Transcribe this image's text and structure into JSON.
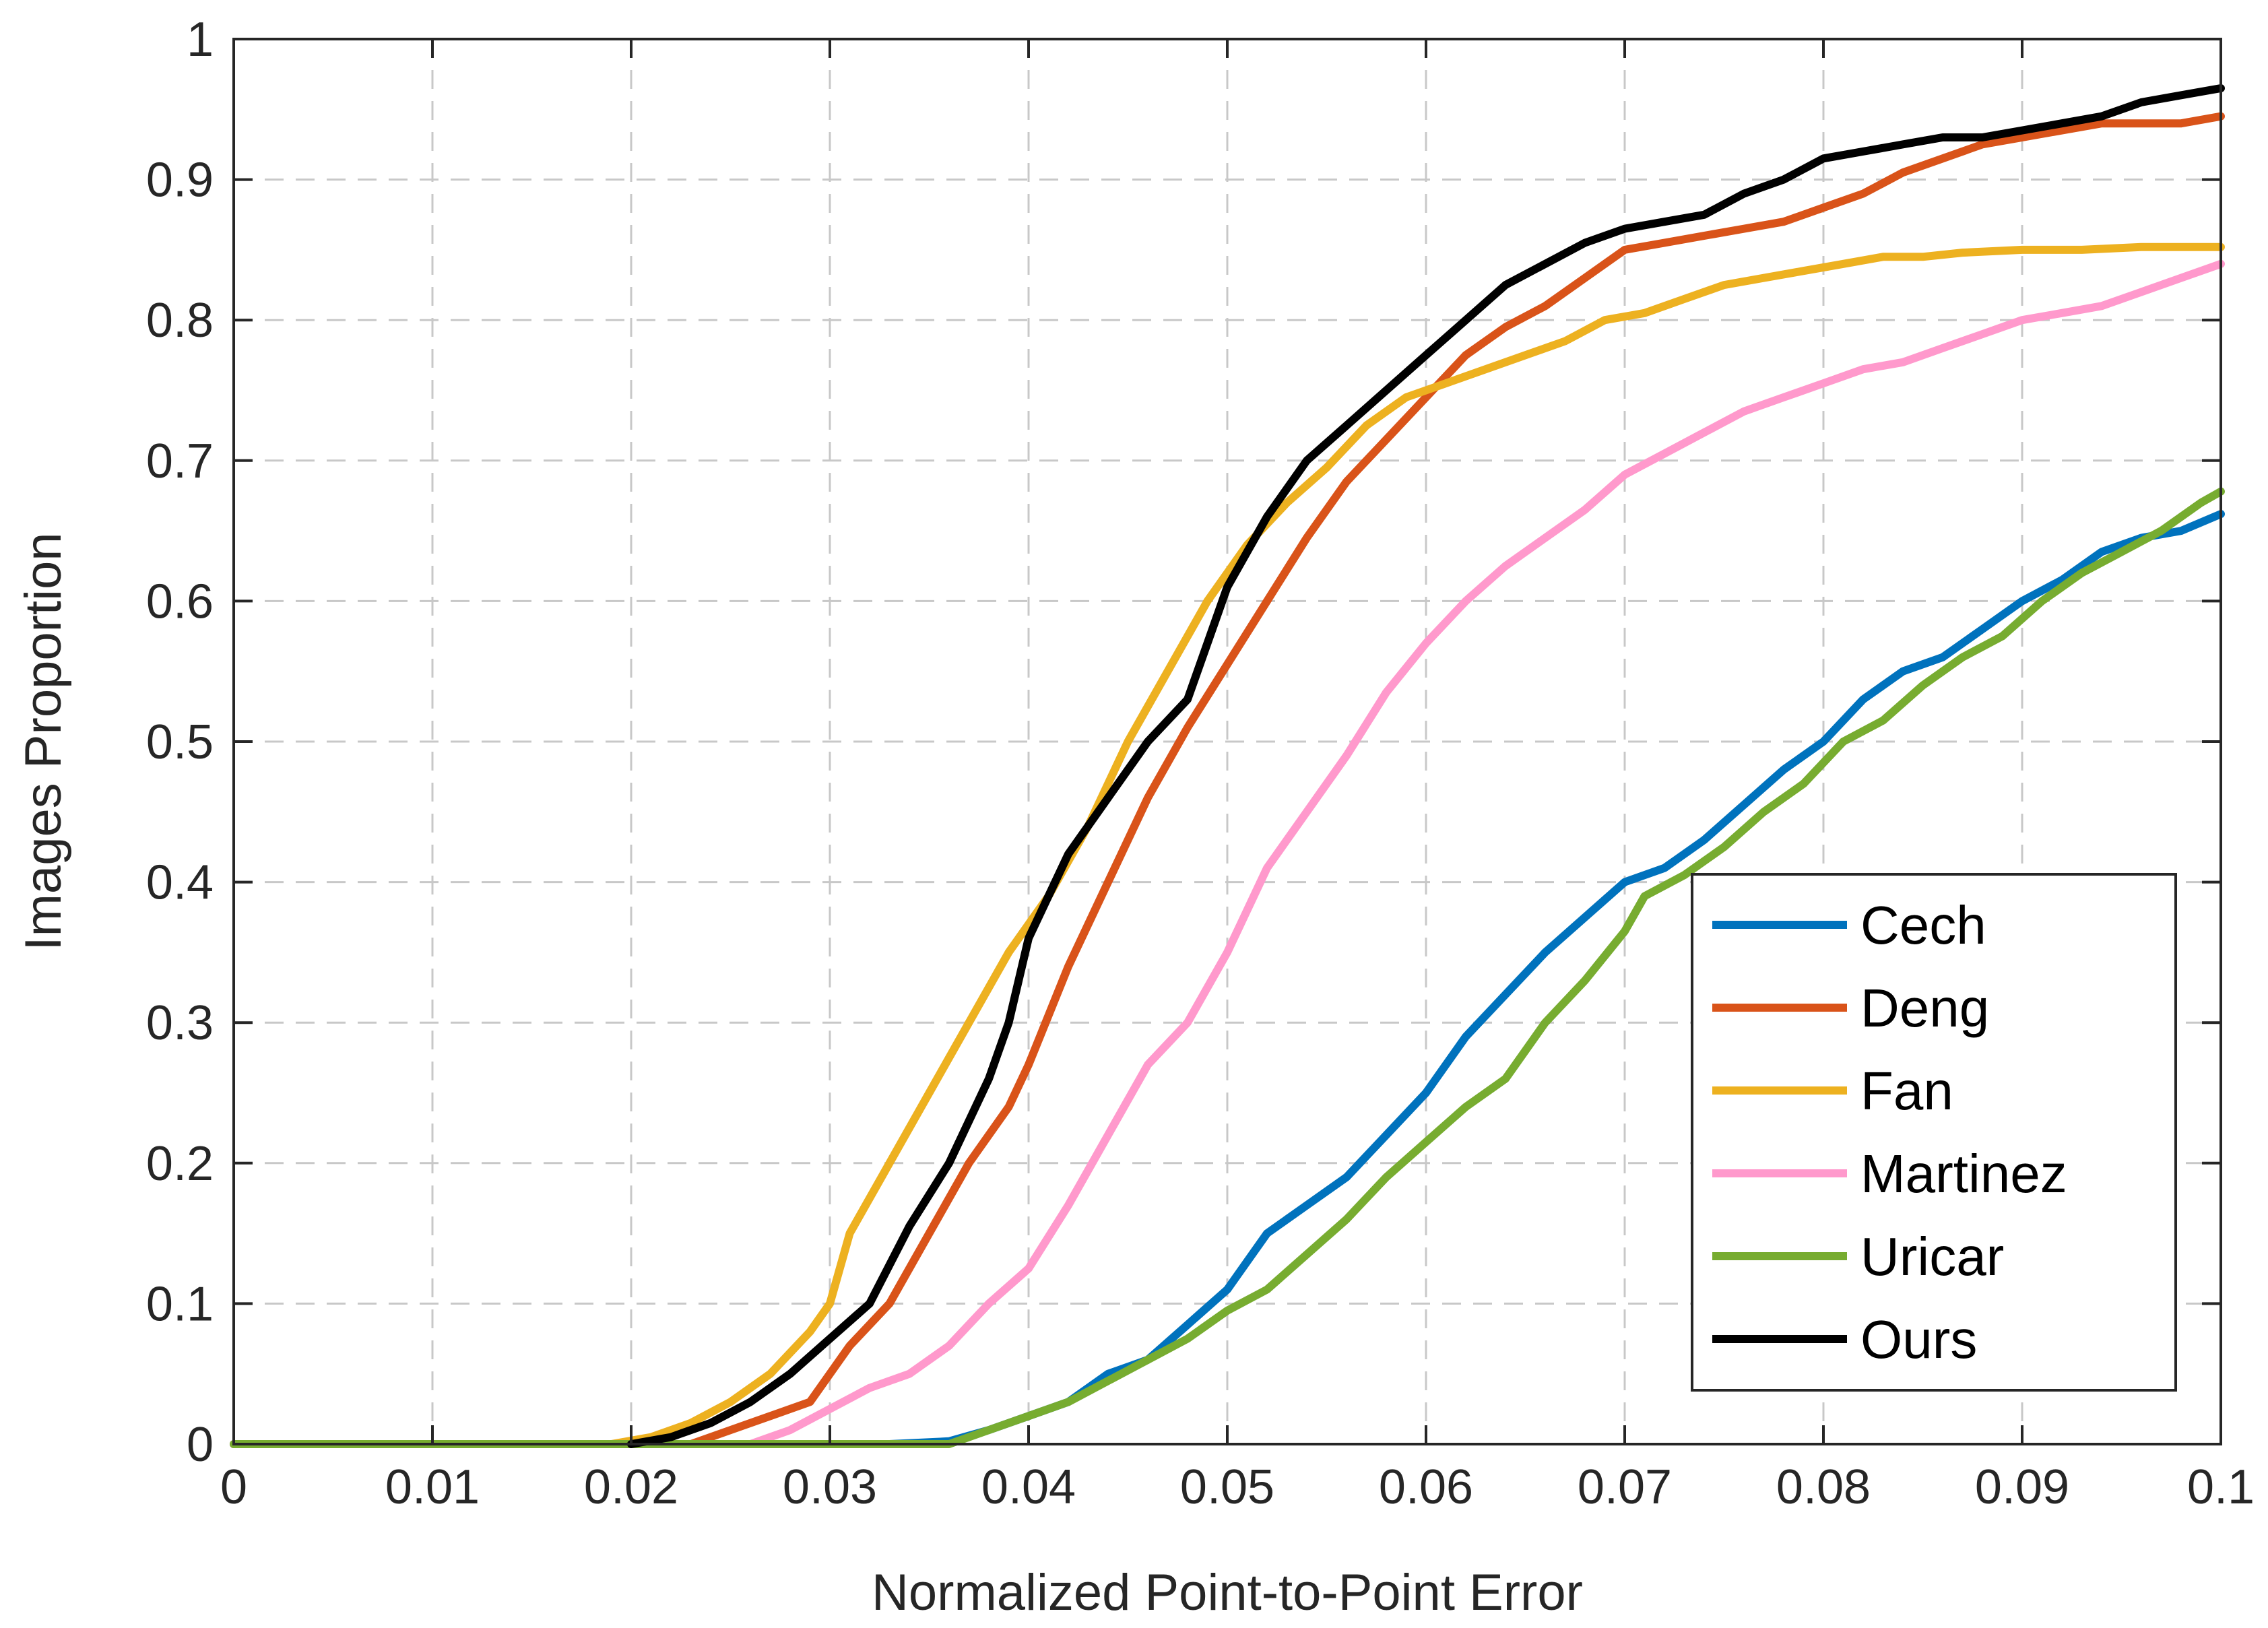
{
  "chart_data": {
    "type": "line",
    "title": "",
    "xlabel": "Normalized Point-to-Point Error",
    "ylabel": "Images Proportion",
    "xlim": [
      0,
      0.1
    ],
    "ylim": [
      0,
      1
    ],
    "xticks": [
      0,
      0.01,
      0.02,
      0.03,
      0.04,
      0.05,
      0.06,
      0.07,
      0.08,
      0.09,
      0.1
    ],
    "yticks": [
      0,
      0.1,
      0.2,
      0.3,
      0.4,
      0.5,
      0.6,
      0.7,
      0.8,
      0.9,
      1
    ],
    "xtick_labels": [
      "0",
      "0.01",
      "0.02",
      "0.03",
      "0.04",
      "0.05",
      "0.06",
      "0.07",
      "0.08",
      "0.09",
      "0.1"
    ],
    "ytick_labels": [
      "0",
      "0.1",
      "0.2",
      "0.3",
      "0.4",
      "0.5",
      "0.6",
      "0.7",
      "0.8",
      "0.9",
      "1"
    ],
    "grid": true,
    "legend_position": "bottom-right",
    "series": [
      {
        "name": "Cech",
        "color": "#0072BD",
        "points": [
          [
            0,
            0
          ],
          [
            0.033,
            0
          ],
          [
            0.036,
            0.002
          ],
          [
            0.038,
            0.01
          ],
          [
            0.04,
            0.02
          ],
          [
            0.042,
            0.03
          ],
          [
            0.044,
            0.05
          ],
          [
            0.046,
            0.06
          ],
          [
            0.048,
            0.085
          ],
          [
            0.05,
            0.11
          ],
          [
            0.052,
            0.15
          ],
          [
            0.054,
            0.17
          ],
          [
            0.056,
            0.19
          ],
          [
            0.058,
            0.22
          ],
          [
            0.06,
            0.25
          ],
          [
            0.062,
            0.29
          ],
          [
            0.064,
            0.32
          ],
          [
            0.066,
            0.35
          ],
          [
            0.068,
            0.375
          ],
          [
            0.07,
            0.4
          ],
          [
            0.072,
            0.41
          ],
          [
            0.074,
            0.43
          ],
          [
            0.076,
            0.455
          ],
          [
            0.078,
            0.48
          ],
          [
            0.08,
            0.5
          ],
          [
            0.082,
            0.53
          ],
          [
            0.084,
            0.55
          ],
          [
            0.086,
            0.56
          ],
          [
            0.088,
            0.58
          ],
          [
            0.09,
            0.6
          ],
          [
            0.092,
            0.615
          ],
          [
            0.094,
            0.635
          ],
          [
            0.096,
            0.645
          ],
          [
            0.098,
            0.65
          ],
          [
            0.1,
            0.662
          ]
        ]
      },
      {
        "name": "Deng",
        "color": "#D95319",
        "points": [
          [
            0,
            0
          ],
          [
            0.023,
            0
          ],
          [
            0.025,
            0.01
          ],
          [
            0.027,
            0.02
          ],
          [
            0.029,
            0.03
          ],
          [
            0.031,
            0.07
          ],
          [
            0.033,
            0.1
          ],
          [
            0.035,
            0.15
          ],
          [
            0.037,
            0.2
          ],
          [
            0.039,
            0.24
          ],
          [
            0.04,
            0.27
          ],
          [
            0.042,
            0.34
          ],
          [
            0.044,
            0.4
          ],
          [
            0.046,
            0.46
          ],
          [
            0.048,
            0.51
          ],
          [
            0.05,
            0.555
          ],
          [
            0.052,
            0.6
          ],
          [
            0.054,
            0.645
          ],
          [
            0.056,
            0.685
          ],
          [
            0.058,
            0.715
          ],
          [
            0.06,
            0.745
          ],
          [
            0.062,
            0.775
          ],
          [
            0.064,
            0.795
          ],
          [
            0.066,
            0.81
          ],
          [
            0.068,
            0.83
          ],
          [
            0.07,
            0.85
          ],
          [
            0.072,
            0.855
          ],
          [
            0.074,
            0.86
          ],
          [
            0.076,
            0.865
          ],
          [
            0.078,
            0.87
          ],
          [
            0.08,
            0.88
          ],
          [
            0.082,
            0.89
          ],
          [
            0.084,
            0.905
          ],
          [
            0.086,
            0.915
          ],
          [
            0.088,
            0.925
          ],
          [
            0.09,
            0.93
          ],
          [
            0.092,
            0.935
          ],
          [
            0.094,
            0.94
          ],
          [
            0.096,
            0.94
          ],
          [
            0.098,
            0.94
          ],
          [
            0.1,
            0.945
          ]
        ]
      },
      {
        "name": "Fan",
        "color": "#EDB120",
        "points": [
          [
            0,
            0
          ],
          [
            0.019,
            0
          ],
          [
            0.021,
            0.005
          ],
          [
            0.023,
            0.015
          ],
          [
            0.025,
            0.03
          ],
          [
            0.027,
            0.05
          ],
          [
            0.029,
            0.08
          ],
          [
            0.03,
            0.1
          ],
          [
            0.031,
            0.15
          ],
          [
            0.033,
            0.2
          ],
          [
            0.035,
            0.25
          ],
          [
            0.037,
            0.3
          ],
          [
            0.039,
            0.35
          ],
          [
            0.041,
            0.39
          ],
          [
            0.043,
            0.44
          ],
          [
            0.045,
            0.5
          ],
          [
            0.047,
            0.55
          ],
          [
            0.049,
            0.6
          ],
          [
            0.051,
            0.64
          ],
          [
            0.053,
            0.67
          ],
          [
            0.055,
            0.695
          ],
          [
            0.057,
            0.725
          ],
          [
            0.059,
            0.745
          ],
          [
            0.061,
            0.755
          ],
          [
            0.063,
            0.765
          ],
          [
            0.065,
            0.775
          ],
          [
            0.067,
            0.785
          ],
          [
            0.069,
            0.8
          ],
          [
            0.071,
            0.805
          ],
          [
            0.073,
            0.815
          ],
          [
            0.075,
            0.825
          ],
          [
            0.077,
            0.83
          ],
          [
            0.079,
            0.835
          ],
          [
            0.081,
            0.84
          ],
          [
            0.083,
            0.845
          ],
          [
            0.085,
            0.845
          ],
          [
            0.087,
            0.848
          ],
          [
            0.09,
            0.85
          ],
          [
            0.093,
            0.85
          ],
          [
            0.096,
            0.852
          ],
          [
            0.1,
            0.852
          ]
        ]
      },
      {
        "name": "Martinez",
        "color": "#FF99CC",
        "points": [
          [
            0,
            0
          ],
          [
            0.026,
            0
          ],
          [
            0.028,
            0.01
          ],
          [
            0.03,
            0.025
          ],
          [
            0.032,
            0.04
          ],
          [
            0.034,
            0.05
          ],
          [
            0.036,
            0.07
          ],
          [
            0.038,
            0.1
          ],
          [
            0.04,
            0.125
          ],
          [
            0.042,
            0.17
          ],
          [
            0.044,
            0.22
          ],
          [
            0.046,
            0.27
          ],
          [
            0.048,
            0.3
          ],
          [
            0.05,
            0.35
          ],
          [
            0.052,
            0.41
          ],
          [
            0.054,
            0.45
          ],
          [
            0.056,
            0.49
          ],
          [
            0.058,
            0.535
          ],
          [
            0.06,
            0.57
          ],
          [
            0.062,
            0.6
          ],
          [
            0.064,
            0.625
          ],
          [
            0.066,
            0.645
          ],
          [
            0.068,
            0.665
          ],
          [
            0.07,
            0.69
          ],
          [
            0.072,
            0.705
          ],
          [
            0.074,
            0.72
          ],
          [
            0.076,
            0.735
          ],
          [
            0.078,
            0.745
          ],
          [
            0.08,
            0.755
          ],
          [
            0.082,
            0.765
          ],
          [
            0.084,
            0.77
          ],
          [
            0.086,
            0.78
          ],
          [
            0.088,
            0.79
          ],
          [
            0.09,
            0.8
          ],
          [
            0.092,
            0.805
          ],
          [
            0.094,
            0.81
          ],
          [
            0.096,
            0.82
          ],
          [
            0.098,
            0.83
          ],
          [
            0.1,
            0.84
          ]
        ]
      },
      {
        "name": "Uricar",
        "color": "#77AC30",
        "points": [
          [
            0,
            0
          ],
          [
            0.036,
            0
          ],
          [
            0.038,
            0.01
          ],
          [
            0.04,
            0.02
          ],
          [
            0.042,
            0.03
          ],
          [
            0.044,
            0.045
          ],
          [
            0.046,
            0.06
          ],
          [
            0.048,
            0.075
          ],
          [
            0.05,
            0.095
          ],
          [
            0.052,
            0.11
          ],
          [
            0.054,
            0.135
          ],
          [
            0.056,
            0.16
          ],
          [
            0.058,
            0.19
          ],
          [
            0.06,
            0.215
          ],
          [
            0.062,
            0.24
          ],
          [
            0.064,
            0.26
          ],
          [
            0.066,
            0.3
          ],
          [
            0.068,
            0.33
          ],
          [
            0.07,
            0.365
          ],
          [
            0.071,
            0.39
          ],
          [
            0.073,
            0.405
          ],
          [
            0.075,
            0.425
          ],
          [
            0.077,
            0.45
          ],
          [
            0.079,
            0.47
          ],
          [
            0.081,
            0.5
          ],
          [
            0.083,
            0.515
          ],
          [
            0.085,
            0.54
          ],
          [
            0.087,
            0.56
          ],
          [
            0.089,
            0.575
          ],
          [
            0.091,
            0.6
          ],
          [
            0.093,
            0.62
          ],
          [
            0.095,
            0.635
          ],
          [
            0.097,
            0.65
          ],
          [
            0.099,
            0.67
          ],
          [
            0.1,
            0.678
          ]
        ]
      },
      {
        "name": "Ours",
        "color": "#000000",
        "points": [
          [
            0.02,
            0
          ],
          [
            0.022,
            0.005
          ],
          [
            0.024,
            0.015
          ],
          [
            0.026,
            0.03
          ],
          [
            0.028,
            0.05
          ],
          [
            0.03,
            0.075
          ],
          [
            0.032,
            0.1
          ],
          [
            0.034,
            0.155
          ],
          [
            0.036,
            0.2
          ],
          [
            0.038,
            0.26
          ],
          [
            0.039,
            0.3
          ],
          [
            0.04,
            0.36
          ],
          [
            0.042,
            0.42
          ],
          [
            0.044,
            0.46
          ],
          [
            0.046,
            0.5
          ],
          [
            0.048,
            0.53
          ],
          [
            0.05,
            0.61
          ],
          [
            0.052,
            0.66
          ],
          [
            0.054,
            0.7
          ],
          [
            0.056,
            0.725
          ],
          [
            0.058,
            0.75
          ],
          [
            0.06,
            0.775
          ],
          [
            0.062,
            0.8
          ],
          [
            0.064,
            0.825
          ],
          [
            0.066,
            0.84
          ],
          [
            0.068,
            0.855
          ],
          [
            0.07,
            0.865
          ],
          [
            0.072,
            0.87
          ],
          [
            0.074,
            0.875
          ],
          [
            0.076,
            0.89
          ],
          [
            0.078,
            0.9
          ],
          [
            0.08,
            0.915
          ],
          [
            0.082,
            0.92
          ],
          [
            0.084,
            0.925
          ],
          [
            0.086,
            0.93
          ],
          [
            0.088,
            0.93
          ],
          [
            0.09,
            0.935
          ],
          [
            0.092,
            0.94
          ],
          [
            0.094,
            0.945
          ],
          [
            0.096,
            0.955
          ],
          [
            0.098,
            0.96
          ],
          [
            0.1,
            0.965
          ]
        ]
      }
    ]
  }
}
